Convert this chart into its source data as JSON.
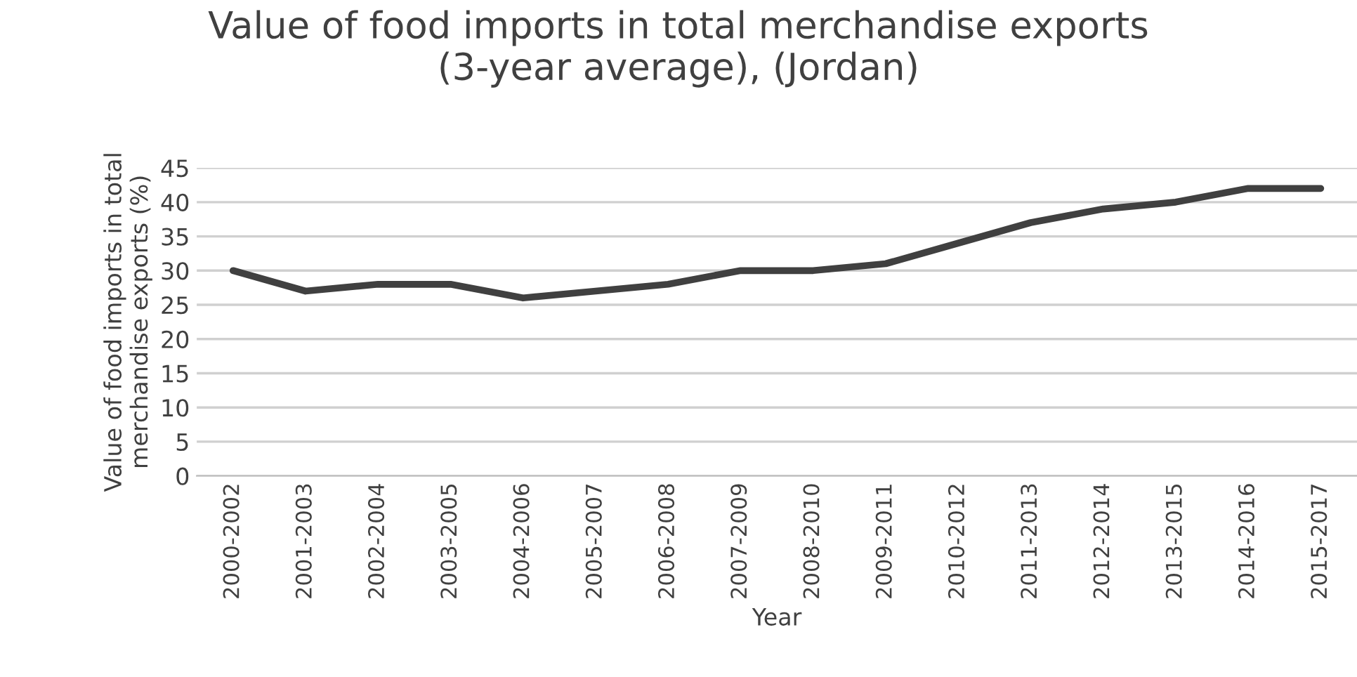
{
  "chart_data": {
    "type": "line",
    "title": "Value of food imports in total merchandise exports\n(3-year average), (Jordan)",
    "xlabel": "Year",
    "ylabel": "Value of food imports in total\nmerchandise exports (%)",
    "categories": [
      "2000-2002",
      "2001-2003",
      "2002-2004",
      "2003-2005",
      "2004-2006",
      "2005-2007",
      "2006-2008",
      "2007-2009",
      "2008-2010",
      "2009-2011",
      "2010-2012",
      "2011-2013",
      "2012-2014",
      "2013-2015",
      "2014-2016",
      "2015-2017"
    ],
    "series": [
      {
        "color": "#404040",
        "values": [
          30,
          27,
          28,
          28,
          26,
          27,
          28,
          30,
          30,
          31,
          34,
          37,
          39,
          40,
          42,
          42
        ]
      }
    ],
    "ylim": [
      0,
      45
    ],
    "yticks": [
      0,
      5,
      10,
      15,
      20,
      25,
      30,
      35,
      40,
      45
    ],
    "grid": "y",
    "legend": false,
    "marker": "none",
    "line_style": "solid"
  }
}
